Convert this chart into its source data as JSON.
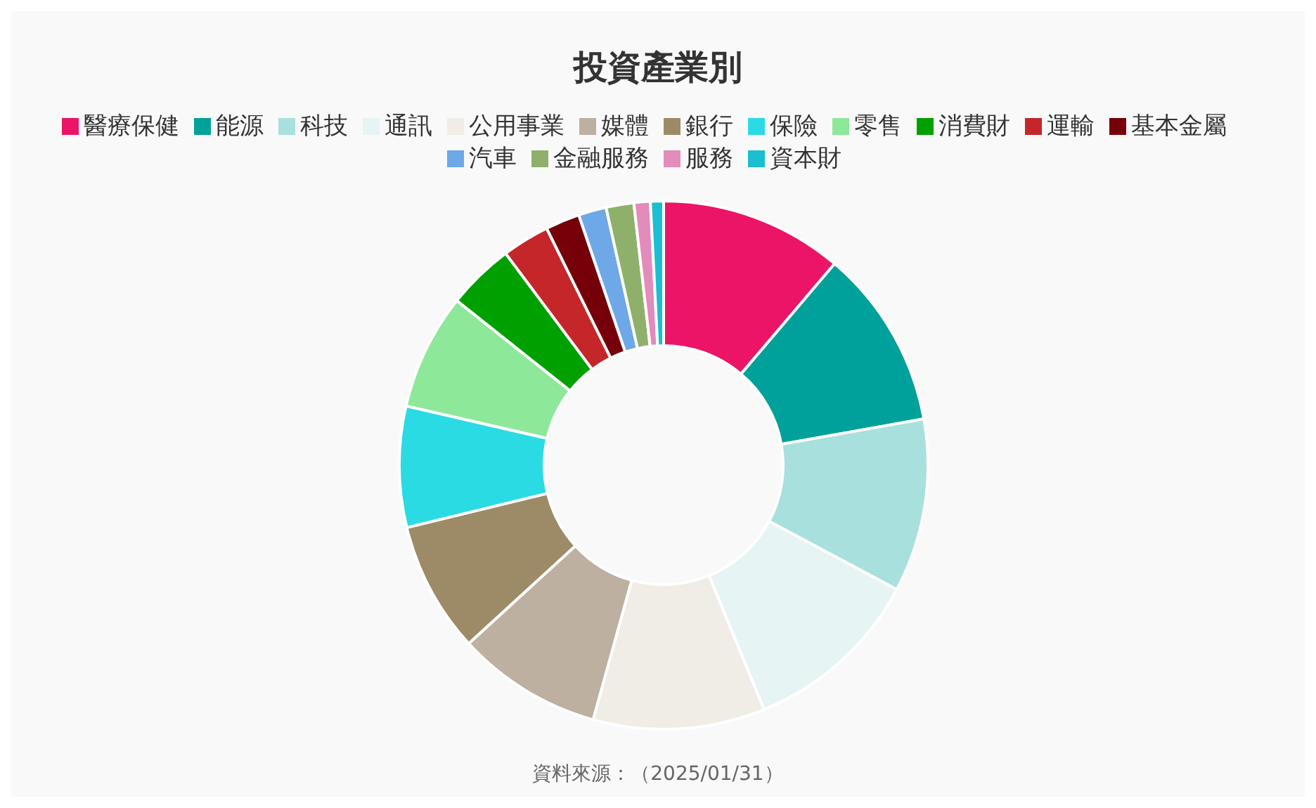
{
  "chart_data": {
    "type": "donut",
    "title": "投資產業別",
    "categories": [
      "醫療保健",
      "能源",
      "科技",
      "通訊",
      "公用事業",
      "媒體",
      "銀行",
      "保險",
      "零售",
      "消費財",
      "運輸",
      "基本金屬",
      "汽車",
      "金融服務",
      "服務",
      "資本財"
    ],
    "values": [
      11.2,
      11,
      10.6,
      11,
      10.5,
      8.9,
      8,
      7.4,
      7.1,
      4.1,
      2.9,
      2.1,
      1.7,
      1.7,
      1,
      0.8
    ],
    "colors": [
      "#ec1466",
      "#00a19a",
      "#a8e0dd",
      "#e6f4f3",
      "#f0ece6",
      "#bdb0a0",
      "#9d8b68",
      "#2bdbe3",
      "#8ee89a",
      "#00a000",
      "#c4262a",
      "#75000a",
      "#6ea8e6",
      "#8fb06a",
      "#e38bbb",
      "#1bbfcf"
    ],
    "legend": "top",
    "annotations": [
      "資料來源：（2025/01/31）"
    ]
  }
}
